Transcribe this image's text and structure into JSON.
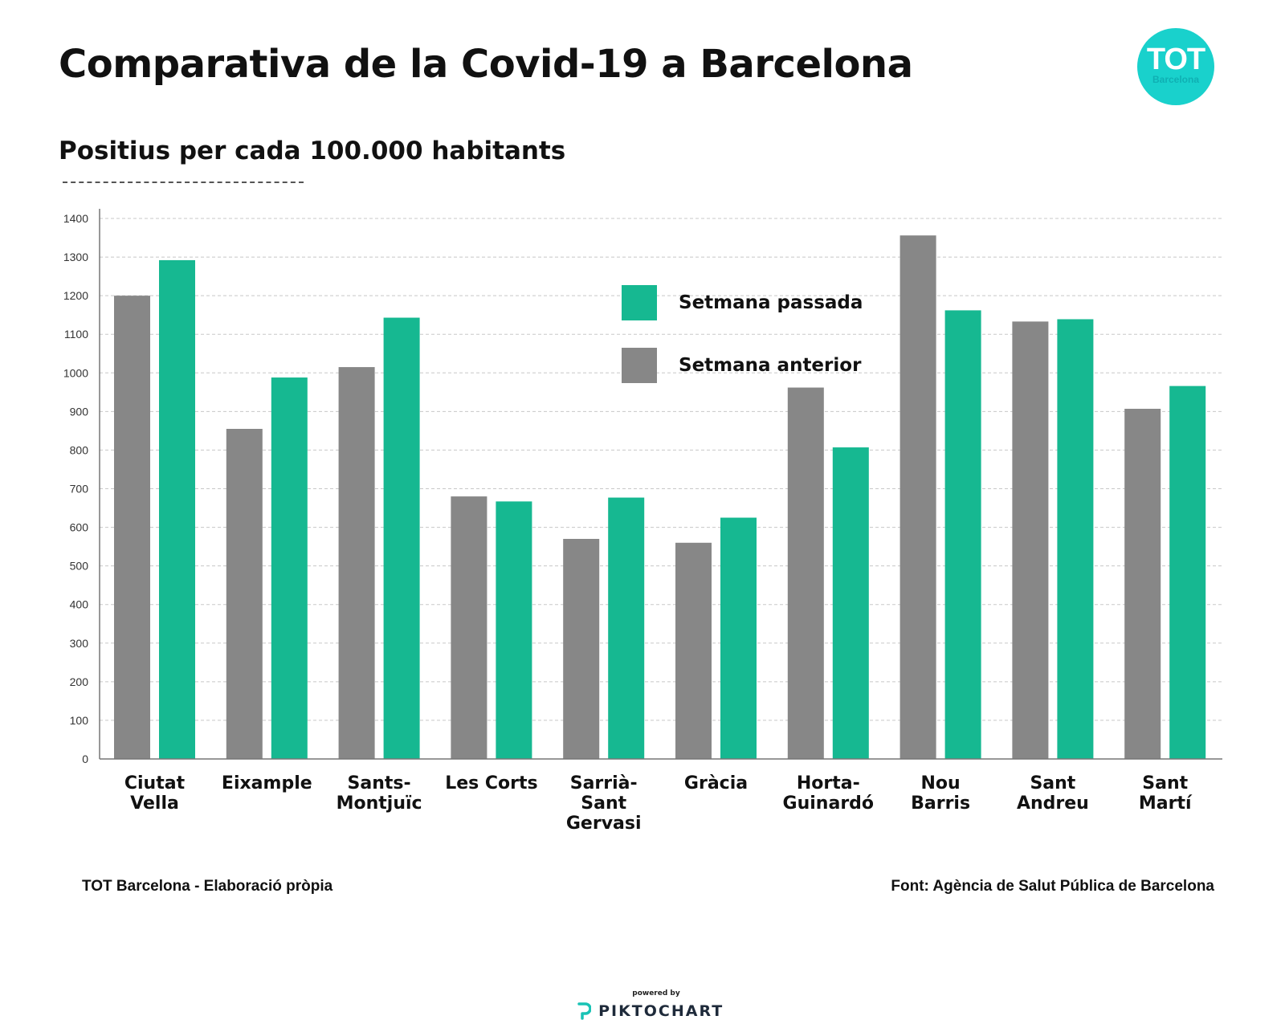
{
  "header": {
    "title": "Comparativa de la Covid-19 a Barcelona",
    "subtitle": "Positius per cada 100.000 habitants",
    "logo_main": "TOT",
    "logo_sub": "Barcelona"
  },
  "footer": {
    "left": "TOT Barcelona - Elaboració pròpia",
    "right": "Font: Agència de Salut Pública de Barcelona",
    "powered_by": "powered by",
    "brand": "PIKTOCHART"
  },
  "colors": {
    "anterior": "#878787",
    "passada": "#16b891",
    "grid": "#c8c8c8",
    "logo": "#19d1cc"
  },
  "chart_data": {
    "type": "bar",
    "categories": [
      [
        "Ciutat",
        "Vella"
      ],
      [
        "Eixample"
      ],
      [
        "Sants-",
        "Montjuïc"
      ],
      [
        "Les Corts"
      ],
      [
        "Sarrià-",
        "Sant",
        "Gervasi"
      ],
      [
        "Gràcia"
      ],
      [
        "Horta-",
        "Guinardó"
      ],
      [
        "Nou",
        "Barris"
      ],
      [
        "Sant",
        "Andreu"
      ],
      [
        "Sant",
        "Martí"
      ]
    ],
    "series": [
      {
        "name": "Setmana anterior",
        "color": "#878787",
        "values": [
          1200,
          855,
          1015,
          680,
          570,
          560,
          962,
          1356,
          1133,
          907
        ]
      },
      {
        "name": "Setmana passada",
        "color": "#16b891",
        "values": [
          1292,
          988,
          1143,
          667,
          677,
          625,
          807,
          1162,
          1139,
          966
        ]
      }
    ],
    "ylim": [
      0,
      1400
    ],
    "yticks": [
      0,
      100,
      200,
      300,
      400,
      500,
      600,
      700,
      800,
      900,
      1000,
      1100,
      1200,
      1300,
      1400
    ],
    "grid": true,
    "legend_position": "top-center",
    "legend_order": [
      "Setmana passada",
      "Setmana anterior"
    ]
  }
}
